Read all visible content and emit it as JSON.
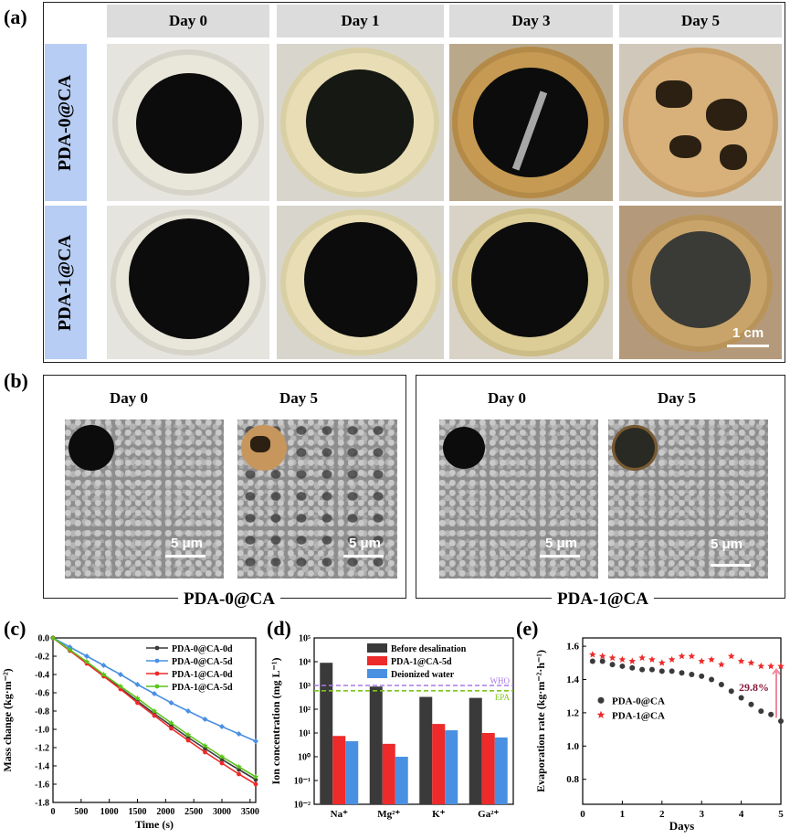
{
  "panel_a": {
    "label": "(a)",
    "columns": [
      "Day 0",
      "Day 1",
      "Day 3",
      "Day 5"
    ],
    "rows": [
      "PDA-0@CA",
      "PDA-1@CA"
    ],
    "scale_bar": "1 cm"
  },
  "panel_b": {
    "label": "(b)",
    "groups": [
      {
        "name": "PDA-0@CA",
        "days": [
          "Day 0",
          "Day 5"
        ],
        "scale": "5 μm"
      },
      {
        "name": "PDA-1@CA",
        "days": [
          "Day 0",
          "Day 5"
        ],
        "scale": "5 μm"
      }
    ]
  },
  "panel_labels": {
    "c": "(c)",
    "d": "(d)",
    "e": "(e)"
  },
  "chart_data": [
    {
      "type": "line",
      "xlabel": "Time (s)",
      "ylabel": "Mass change (kg·m⁻²)",
      "xlim": [
        0,
        3600
      ],
      "ylim": [
        -1.8,
        0.0
      ],
      "xticks": [
        "0",
        "500",
        "1000",
        "1500",
        "2000",
        "2500",
        "3000",
        "3500"
      ],
      "yticks": [
        "0.0",
        "-0.2",
        "-0.4",
        "-0.6",
        "-0.8",
        "-1.0",
        "-1.2",
        "-1.4",
        "-1.6",
        "-1.8"
      ],
      "x": [
        0,
        300,
        600,
        900,
        1200,
        1500,
        1800,
        2100,
        2400,
        2700,
        3000,
        3300,
        3600
      ],
      "series": [
        {
          "name": "PDA-0@CA-0d",
          "color": "#3a3a3a",
          "values": [
            0.0,
            -0.13,
            -0.27,
            -0.41,
            -0.55,
            -0.69,
            -0.83,
            -0.96,
            -1.09,
            -1.21,
            -1.33,
            -1.44,
            -1.55
          ]
        },
        {
          "name": "PDA-0@CA-5d",
          "color": "#4a90e2",
          "values": [
            0.0,
            -0.1,
            -0.2,
            -0.3,
            -0.4,
            -0.51,
            -0.61,
            -0.71,
            -0.8,
            -0.89,
            -0.97,
            -1.05,
            -1.13
          ]
        },
        {
          "name": "PDA-1@CA-0d",
          "color": "#ee2a2a",
          "values": [
            0.0,
            -0.14,
            -0.28,
            -0.42,
            -0.56,
            -0.71,
            -0.85,
            -0.99,
            -1.12,
            -1.25,
            -1.37,
            -1.49,
            -1.6
          ]
        },
        {
          "name": "PDA-1@CA-5d",
          "color": "#5bc41a",
          "values": [
            0.0,
            -0.13,
            -0.26,
            -0.4,
            -0.53,
            -0.66,
            -0.8,
            -0.93,
            -1.06,
            -1.18,
            -1.3,
            -1.41,
            -1.52
          ]
        }
      ]
    },
    {
      "type": "bar",
      "ylabel": "Ion concentration (mg L⁻¹)",
      "yscale": "log",
      "ylim": [
        0.01,
        100000
      ],
      "yticks": [
        "10⁻²",
        "10⁻¹",
        "10⁰",
        "10¹",
        "10²",
        "10³",
        "10⁴",
        "10⁵"
      ],
      "categories": [
        "Na⁺",
        "Mg²⁺",
        "K⁺",
        "Ga²⁺"
      ],
      "series": [
        {
          "name": "Before desalination",
          "color": "#3a3a3a",
          "values": [
            9000,
            900,
            330,
            300
          ]
        },
        {
          "name": "PDA-1@CA-5d",
          "color": "#ee2a2a",
          "values": [
            7.5,
            3.5,
            24,
            10
          ]
        },
        {
          "name": "Deionized water",
          "color": "#4a90e2",
          "values": [
            4.5,
            1.0,
            13,
            6.5
          ]
        }
      ],
      "reference_lines": [
        {
          "name": "WHO",
          "value": 1000,
          "color": "#a77be8"
        },
        {
          "name": "EPA",
          "value": 600,
          "color": "#7cc41a"
        }
      ]
    },
    {
      "type": "scatter",
      "xlabel": "Days",
      "ylabel": "Evaporation rate (kg·m⁻²·h⁻¹)",
      "xlim": [
        0,
        5
      ],
      "ylim": [
        0.65,
        1.65
      ],
      "xticks": [
        "0",
        "1",
        "2",
        "3",
        "4",
        "5"
      ],
      "yticks": [
        "0.8",
        "1.0",
        "1.2",
        "1.4",
        "1.6"
      ],
      "series": [
        {
          "name": "PDA-0@CA",
          "color": "#3a3a3a",
          "marker": "circle",
          "x": [
            0.25,
            0.5,
            0.75,
            1.0,
            1.25,
            1.5,
            1.75,
            2.0,
            2.25,
            2.5,
            2.75,
            3.0,
            3.25,
            3.5,
            3.75,
            4.0,
            4.25,
            4.5,
            4.75,
            5.0
          ],
          "y": [
            1.51,
            1.51,
            1.49,
            1.48,
            1.47,
            1.46,
            1.46,
            1.45,
            1.45,
            1.44,
            1.43,
            1.42,
            1.4,
            1.37,
            1.33,
            1.29,
            1.25,
            1.21,
            1.19,
            1.15
          ]
        },
        {
          "name": "PDA-1@CA",
          "color": "#ee2a2a",
          "marker": "star",
          "x": [
            0.25,
            0.5,
            0.75,
            1.0,
            1.25,
            1.5,
            1.75,
            2.0,
            2.25,
            2.5,
            2.75,
            3.0,
            3.25,
            3.5,
            3.75,
            4.0,
            4.25,
            4.5,
            4.75,
            5.0
          ],
          "y": [
            1.55,
            1.54,
            1.53,
            1.52,
            1.51,
            1.53,
            1.52,
            1.5,
            1.52,
            1.54,
            1.54,
            1.51,
            1.52,
            1.49,
            1.54,
            1.51,
            1.5,
            1.48,
            1.48,
            1.48
          ]
        }
      ],
      "annotation": "29.8%"
    }
  ]
}
